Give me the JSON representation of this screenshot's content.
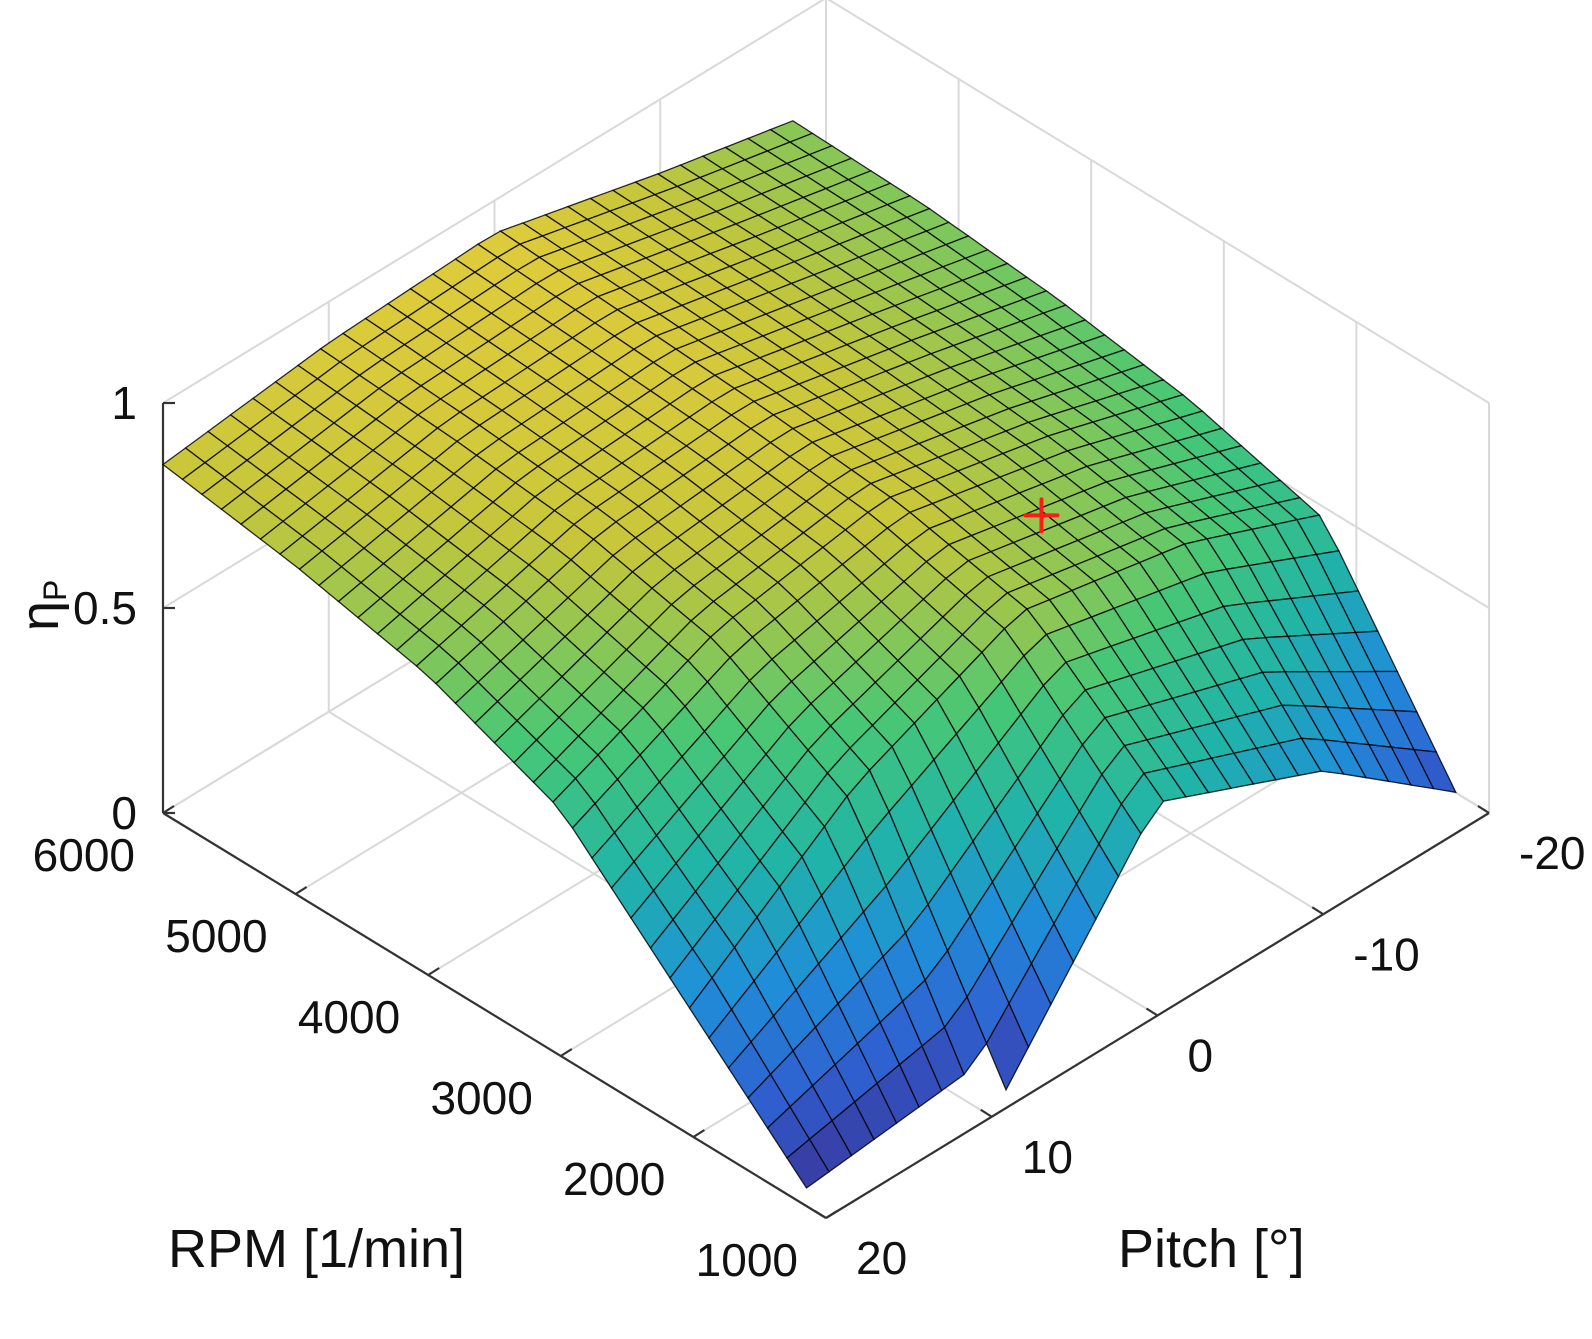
{
  "chart_data": {
    "type": "surface",
    "title": "",
    "x_axis": {
      "label": "RPM [1/min]",
      "range": [
        1000,
        6000
      ],
      "ticks": [
        1000,
        2000,
        3000,
        4000,
        5000,
        6000
      ],
      "tick_labels": [
        "1000",
        "2000",
        "3000",
        "4000",
        "5000",
        "6000"
      ]
    },
    "y_axis": {
      "label": "Pitch [°]",
      "range": [
        -20,
        20
      ],
      "ticks": [
        20,
        10,
        0,
        -10,
        -20
      ],
      "tick_labels": [
        "20",
        "10",
        "0",
        "-10",
        "-20"
      ]
    },
    "z_axis": {
      "label_main": "η",
      "label_sub": "P",
      "range": [
        0,
        1
      ],
      "ticks": [
        0,
        0.5,
        1
      ],
      "tick_labels": [
        "0",
        "0.5",
        "1"
      ]
    },
    "grid": true,
    "colormap": [
      "#3e2a8a",
      "#2f5fd0",
      "#1f8fd8",
      "#20b4a8",
      "#46c776",
      "#c6c63a",
      "#f7d13d"
    ],
    "marker": {
      "rpm": 2500,
      "pitch": -5,
      "eta": 0.8,
      "color": "#ff1a1a",
      "symbol": "plus"
    },
    "surface_samples": {
      "rpm": [
        1000,
        2000,
        3000,
        4000,
        5000,
        6000
      ],
      "pitch": [
        -18,
        -10,
        0,
        10,
        20
      ],
      "eta": [
        [
          0.1,
          0.35,
          0.52,
          0.0,
          0.0
        ],
        [
          0.57,
          0.7,
          0.78,
          0.6,
          0.3
        ],
        [
          0.66,
          0.76,
          0.85,
          0.78,
          0.6
        ],
        [
          0.71,
          0.79,
          0.88,
          0.85,
          0.73
        ],
        [
          0.74,
          0.81,
          0.9,
          0.88,
          0.8
        ],
        [
          0.75,
          0.82,
          0.92,
          0.9,
          0.85
        ]
      ]
    }
  }
}
